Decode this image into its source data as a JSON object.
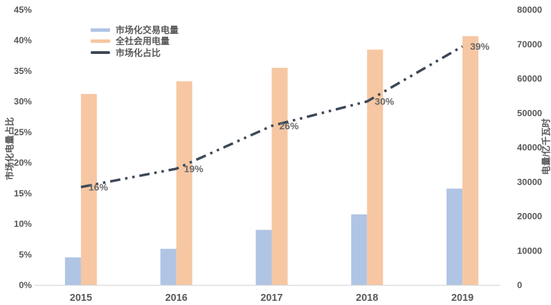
{
  "chart_data": {
    "type": "combo",
    "categories": [
      "2015",
      "2016",
      "2017",
      "2018",
      "2019"
    ],
    "series": [
      {
        "name": "市场化交易电量",
        "type": "bar",
        "axis": "right",
        "color": "#B0C4E4",
        "values": [
          8000,
          10500,
          16000,
          20500,
          28000
        ]
      },
      {
        "name": "全社会用电量",
        "type": "bar",
        "axis": "right",
        "color": "#F6C7A2",
        "values": [
          55500,
          59200,
          63100,
          68400,
          72300
        ]
      },
      {
        "name": "市场化占比",
        "type": "line",
        "axis": "left",
        "color": "#3D4856",
        "line_style": "dash-dot-dot",
        "values": [
          16,
          19,
          26,
          30,
          39
        ],
        "labels": [
          "16%",
          "19%",
          "26%",
          "30%",
          "39%"
        ]
      }
    ],
    "left_axis": {
      "title": "市场化电量占比",
      "min": 0,
      "max": 45,
      "step": 5,
      "unit": "%",
      "tick_labels": [
        "0%",
        "5%",
        "10%",
        "15%",
        "20%",
        "25%",
        "30%",
        "35%",
        "40%",
        "45%"
      ]
    },
    "right_axis": {
      "title": "电量/亿千瓦时",
      "min": 0,
      "max": 80000,
      "step": 10000,
      "tick_labels": [
        "0",
        "10000",
        "20000",
        "30000",
        "40000",
        "50000",
        "60000",
        "70000",
        "80000"
      ]
    },
    "legend": {
      "position": "inside-top-left"
    },
    "grid": false
  },
  "styles": {
    "background": "#FFFFFF",
    "axis_text_color": "#595959",
    "data_label_color": "#696969",
    "axis_line_color": "#D9D9D9"
  }
}
